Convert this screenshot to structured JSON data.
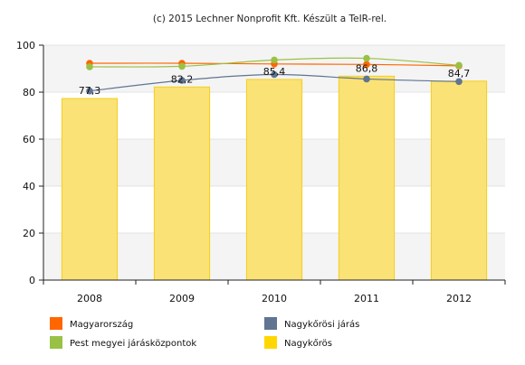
{
  "credit": "(c) 2015 Lechner Nonprofit Kft. Készült a TeIR-rel.",
  "colors": {
    "bar_fill": "#fae276",
    "bar_stroke": "#f3cf1f",
    "band": "#f4f4f4",
    "grid": "#e3e3e3",
    "axis": "#222222"
  },
  "chart_data": {
    "type": "bar",
    "categories": [
      "2008",
      "2009",
      "2010",
      "2011",
      "2012"
    ],
    "ylim": [
      0,
      100
    ],
    "yticks": [
      0,
      20,
      40,
      60,
      80,
      100
    ],
    "grid": true,
    "legend_position": "bottom",
    "series": [
      {
        "name": "Nagykőrös",
        "type": "bar",
        "color": "#ffd700",
        "values": [
          77.3,
          82.2,
          85.4,
          86.8,
          84.7
        ],
        "labels": [
          "77,3",
          "82,2",
          "85,4",
          "86,8",
          "84,7"
        ]
      },
      {
        "name": "Magyarország",
        "type": "line",
        "color": "#ff6600",
        "values": [
          92.3,
          92.3,
          92.0,
          91.8,
          91.2
        ]
      },
      {
        "name": "Nagykőrösi járás",
        "type": "line",
        "color": "#5f7591",
        "values": [
          80.5,
          85.0,
          87.5,
          85.6,
          84.5
        ]
      },
      {
        "name": "Pest megyei járásközpontok",
        "type": "line",
        "color": "#99c146",
        "values": [
          90.8,
          91.0,
          93.7,
          94.4,
          91.4
        ]
      }
    ],
    "legend": [
      {
        "name": "Magyarország",
        "color": "#ff6600"
      },
      {
        "name": "Nagykőrösi járás",
        "color": "#5f7591"
      },
      {
        "name": "Pest megyei járásközpontok",
        "color": "#99c146"
      },
      {
        "name": "Nagykőrös",
        "color": "#ffd700"
      }
    ]
  }
}
